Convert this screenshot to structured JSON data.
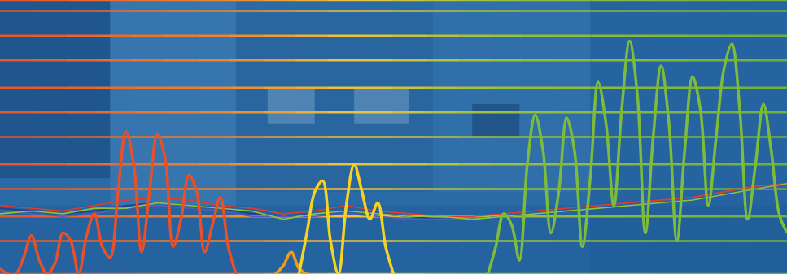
{
  "chart_data": {
    "type": "line",
    "xlim": [
      0,
      100
    ],
    "xticks": [
      0,
      100
    ],
    "ylim": [
      0,
      100
    ],
    "yticks": [
      0,
      12,
      21,
      31,
      40,
      50,
      59,
      68,
      78,
      87,
      96,
      100
    ],
    "grid": true,
    "tick_labels": false,
    "series": [
      {
        "color": "#e53b2a",
        "line_style": "thin",
        "x": [
          0,
          4,
          8,
          12,
          16,
          20,
          24,
          28,
          32,
          36,
          40,
          44,
          48,
          52,
          56,
          60,
          64,
          68,
          72,
          76,
          80,
          84,
          88,
          92,
          96,
          100
        ],
        "values": [
          25,
          24,
          23,
          25,
          27,
          28,
          27,
          25,
          24,
          22,
          23,
          25,
          23,
          22,
          21,
          21,
          22,
          23,
          24,
          25,
          26,
          27,
          28,
          30,
          32,
          33
        ]
      },
      {
        "color": "#2a3a8c",
        "line_style": "thin",
        "x": [
          0,
          4,
          8,
          12,
          16,
          20,
          24,
          28,
          32,
          36,
          40,
          44,
          48,
          52,
          56,
          60,
          64,
          68,
          72,
          76,
          80,
          84,
          88,
          92,
          96,
          100
        ],
        "values": [
          24,
          23,
          22,
          23,
          25,
          26,
          25,
          24,
          22,
          21,
          22,
          23,
          22,
          21,
          20,
          20,
          21,
          22,
          23,
          24,
          25,
          26,
          27,
          29,
          31,
          32
        ]
      },
      {
        "color": "#5a58b8",
        "line_style": "thin",
        "x": [
          0,
          4,
          8,
          12,
          16,
          20,
          24,
          28,
          32,
          36,
          40,
          44,
          48,
          52,
          56,
          60,
          64,
          68,
          72,
          76,
          80,
          84,
          88,
          92,
          96,
          100
        ],
        "values": [
          23,
          22,
          21,
          22,
          24,
          25,
          24,
          23,
          21,
          21,
          21,
          22,
          21,
          20,
          20,
          20,
          21,
          22,
          23,
          24,
          25,
          26,
          27,
          29,
          31,
          32
        ]
      },
      {
        "color": "#8cc43c",
        "line_style": "thin",
        "x": [
          0,
          4,
          8,
          12,
          16,
          20,
          24,
          28,
          32,
          36,
          40,
          44,
          48,
          52,
          56,
          60,
          64,
          68,
          72,
          76,
          80,
          84,
          88,
          92,
          96,
          100
        ],
        "values": [
          22,
          23,
          22,
          24,
          24,
          26,
          25,
          24,
          23,
          20,
          22,
          23,
          22,
          21,
          21,
          20,
          21,
          22,
          23,
          24,
          25,
          26,
          27,
          29,
          31,
          33
        ]
      },
      {
        "color": "#e8502a",
        "line_style": "thick",
        "x": [
          0,
          1,
          2,
          3,
          4,
          5,
          6,
          7,
          8,
          9,
          10,
          11,
          12,
          13,
          14,
          15,
          16,
          17,
          18,
          19,
          20,
          21,
          22,
          23,
          24,
          25,
          26,
          27,
          28,
          29,
          30
        ],
        "values": [
          2,
          0,
          0,
          6,
          14,
          5,
          0,
          4,
          15,
          12,
          0,
          14,
          22,
          10,
          6,
          30,
          52,
          40,
          8,
          30,
          51,
          42,
          10,
          20,
          36,
          30,
          8,
          18,
          28,
          10,
          0
        ]
      },
      {
        "color": "#f29a1e",
        "line_style": "thick",
        "x": [
          35,
          36,
          37,
          38,
          39
        ],
        "values": [
          0,
          3,
          8,
          2,
          0
        ]
      },
      {
        "color": "#f5d322",
        "line_style": "thick",
        "x": [
          38,
          39,
          40,
          41,
          42,
          43,
          44,
          45,
          46,
          47,
          48,
          49,
          50
        ],
        "values": [
          0,
          15,
          30,
          34,
          12,
          0,
          25,
          40,
          30,
          20,
          26,
          10,
          0
        ]
      },
      {
        "color": "#7dbb3c",
        "line_style": "thick",
        "x": [
          62,
          63,
          64,
          65,
          66,
          67,
          68,
          69,
          70,
          71,
          72,
          73,
          74,
          75,
          76,
          77,
          78,
          79,
          80,
          81,
          82,
          83,
          84,
          85,
          86,
          87,
          88,
          89,
          90,
          91,
          92,
          93,
          94,
          95,
          96,
          97,
          98,
          99,
          100
        ],
        "values": [
          0,
          10,
          22,
          18,
          5,
          40,
          58,
          45,
          15,
          30,
          57,
          45,
          10,
          35,
          70,
          55,
          25,
          60,
          85,
          65,
          15,
          50,
          76,
          55,
          12,
          45,
          72,
          60,
          25,
          50,
          75,
          84,
          60,
          20,
          40,
          62,
          45,
          22,
          15
        ]
      }
    ]
  }
}
